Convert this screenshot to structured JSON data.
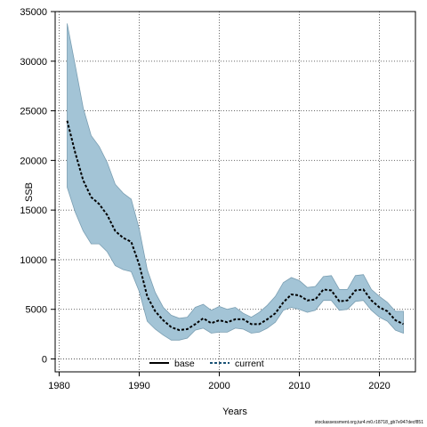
{
  "chart_data": {
    "type": "line",
    "xlabel": "Years",
    "ylabel": "SSB",
    "xlim": [
      1979.5,
      2024.5
    ],
    "ylim": [
      -1300,
      35000
    ],
    "x_ticks": [
      1980,
      1990,
      2000,
      2010,
      2020
    ],
    "y_ticks": [
      0,
      5000,
      10000,
      15000,
      20000,
      25000,
      30000,
      35000
    ],
    "grid": true,
    "legend_position": "bottom-center",
    "legend": [
      {
        "label": "base",
        "style": "solid",
        "color": "#000000"
      },
      {
        "label": "current",
        "style": "dashed",
        "color": "#1a5276"
      }
    ],
    "colors": {
      "band": "#a3c4d6",
      "band_edge": "#7a9eb2",
      "line": "#000000"
    },
    "years": [
      1981,
      1982,
      1983,
      1984,
      1985,
      1986,
      1987,
      1988,
      1989,
      1990,
      1991,
      1992,
      1993,
      1994,
      1995,
      1996,
      1997,
      1998,
      1999,
      2000,
      2001,
      2002,
      2003,
      2004,
      2005,
      2006,
      2007,
      2008,
      2009,
      2010,
      2011,
      2012,
      2013,
      2014,
      2015,
      2016,
      2017,
      2018,
      2019,
      2020,
      2021,
      2022,
      2023
    ],
    "series": [
      {
        "name": "current",
        "values": [
          24000,
          20800,
          18000,
          16300,
          15600,
          14500,
          12900,
          12200,
          11800,
          9500,
          6300,
          4800,
          3900,
          3200,
          2900,
          3000,
          3500,
          4100,
          3600,
          3900,
          3700,
          4000,
          4000,
          3500,
          3500,
          4000,
          4600,
          5700,
          6500,
          6400,
          5900,
          6000,
          7000,
          6900,
          5800,
          5900,
          6900,
          7000,
          5900,
          5200,
          4800,
          3900,
          3500
        ],
        "lower": [
          17300,
          14800,
          12900,
          11600,
          11600,
          10800,
          9400,
          9000,
          8800,
          6800,
          3800,
          3000,
          2400,
          1900,
          1900,
          2100,
          2900,
          3100,
          2600,
          2700,
          2700,
          3100,
          3000,
          2600,
          2700,
          3100,
          3700,
          4900,
          5200,
          5000,
          4700,
          4900,
          5900,
          5900,
          4900,
          5000,
          5800,
          5900,
          4900,
          4200,
          3800,
          2900,
          2600
        ],
        "upper": [
          33800,
          29600,
          25300,
          22500,
          21400,
          19800,
          17600,
          16700,
          16100,
          13100,
          9000,
          6700,
          5200,
          4400,
          4100,
          4200,
          5200,
          5500,
          4900,
          5300,
          5000,
          5200,
          4600,
          4200,
          4700,
          5400,
          6300,
          7700,
          8200,
          7900,
          7200,
          7300,
          8300,
          8400,
          7000,
          7000,
          8400,
          8500,
          7000,
          6300,
          5700,
          4800,
          4800
        ]
      }
    ]
  },
  "footer": "stockassessment.org,tur4.m0.r18718_gb7e947decf851"
}
